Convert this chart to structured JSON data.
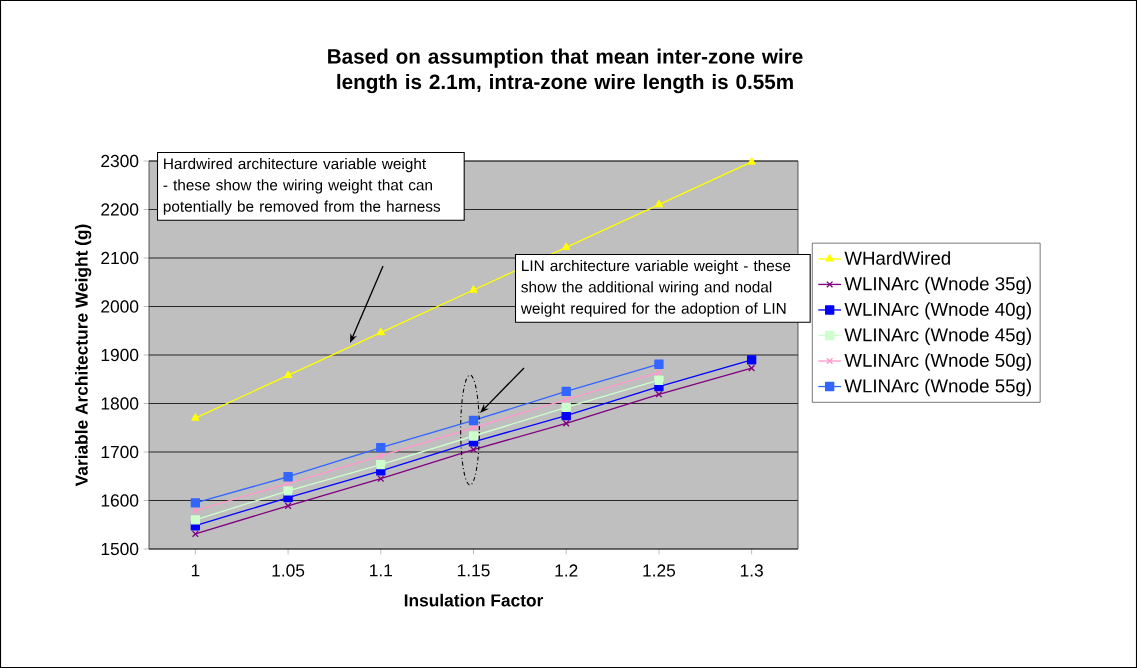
{
  "chart_data": {
    "type": "line",
    "title": "Based on assumption that mean inter-zone wire length is 2.1m, intra-zone wire length is 0.55m",
    "xlabel": "Insulation Factor",
    "ylabel": "Variable Architecture Weight (g)",
    "categories": [
      "1",
      "1.05",
      "1.1",
      "1.15",
      "1.2",
      "1.25",
      "1.3"
    ],
    "series": [
      {
        "name": "WHardWired",
        "color": "#ffff00",
        "marker": "triangle",
        "values": [
          1770,
          1858,
          1946,
          2034,
          2122,
          2210,
          2298
        ]
      },
      {
        "name": "WLINArc (Wnode 35g)",
        "color": "#800080",
        "marker": "cross",
        "values": [
          1531,
          1589,
          1645,
          1705,
          1759,
          1819,
          1873
        ]
      },
      {
        "name": "WLINArc (Wnode 40g)",
        "color": "#0000ff",
        "marker": "square",
        "values": [
          1548,
          1606,
          1661,
          1721,
          1775,
          1835,
          1890
        ]
      },
      {
        "name": "WLINArc (Wnode 45g)",
        "color": "#ccffcc",
        "marker": "square",
        "values": [
          1560,
          1620,
          1674,
          1733,
          1792,
          1848,
          null
        ]
      },
      {
        "name": "WLINArc (Wnode 50g)",
        "color": "#ff99cc",
        "marker": "cross",
        "values": [
          1579,
          1635,
          1692,
          1750,
          1808,
          1864,
          null
        ]
      },
      {
        "name": "WLINArc (Wnode 55g)",
        "color": "#3366ff",
        "marker": "square",
        "values": [
          1595,
          1649,
          1709,
          1765,
          1825,
          1881,
          null
        ]
      }
    ],
    "ylim": [
      1500,
      2300
    ],
    "yticks": [
      1500,
      1600,
      1700,
      1800,
      1900,
      2000,
      2100,
      2200,
      2300
    ],
    "grid": "y",
    "legend": "right",
    "annotations": [
      "Hardwired architecture variable weight - these show the wiring weight that can potentially be removed from the harness",
      "LIN architecture variable weight - these show the additional wiring and nodal weight required for the adoption of LIN"
    ]
  }
}
